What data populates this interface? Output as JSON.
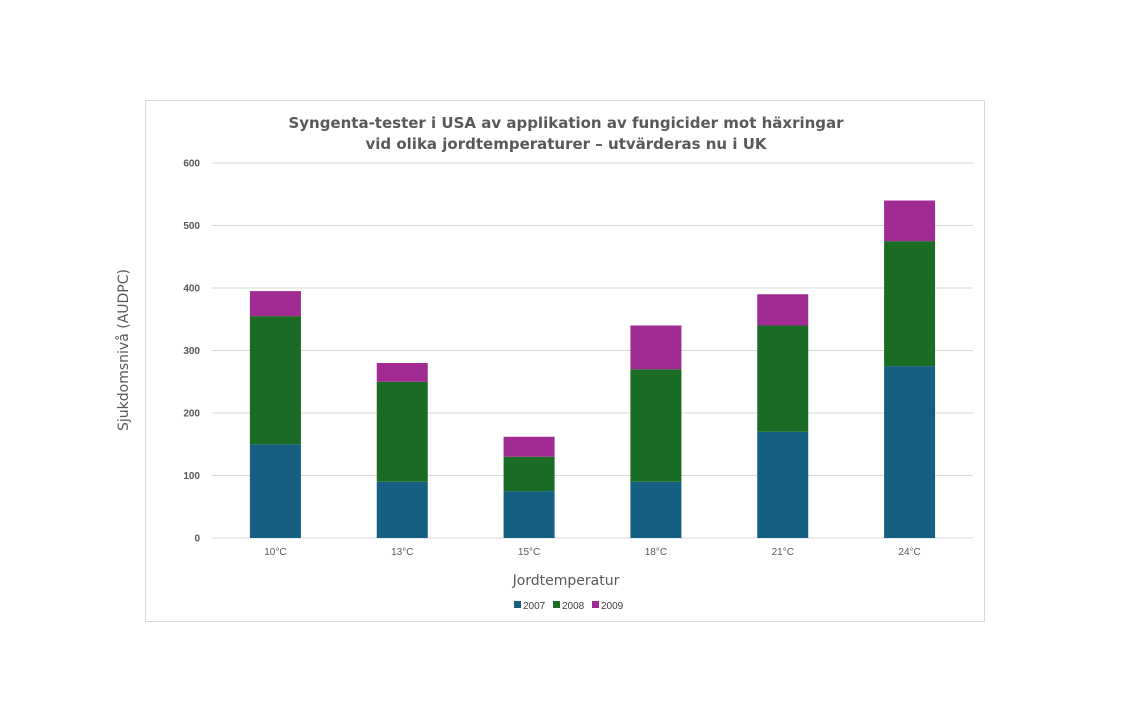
{
  "chart_data": {
    "type": "bar",
    "stacked": true,
    "title_lines": [
      "Syngenta-tester i USA av applikation av fungicider mot häxringar",
      "vid olika jordtemperaturer – utvärderas nu i UK"
    ],
    "xlabel": "Jordtemperatur",
    "ylabel": "Sjukdomsnivå (AUDPC)",
    "categories": [
      "10°C",
      "13°C",
      "15°C",
      "18°C",
      "21°C",
      "24°C"
    ],
    "ylim": [
      0,
      600
    ],
    "yticks": [
      0,
      100,
      200,
      300,
      400,
      500,
      600
    ],
    "grid": true,
    "legend_position": "bottom",
    "series": [
      {
        "name": "2007",
        "color": "#155f82",
        "values": [
          150,
          90,
          75,
          90,
          170,
          275
        ]
      },
      {
        "name": "2008",
        "color": "#1a6b24",
        "values": [
          205,
          160,
          55,
          180,
          170,
          200
        ]
      },
      {
        "name": "2009",
        "color": "#a02b93",
        "values": [
          40,
          30,
          32,
          70,
          50,
          65
        ]
      }
    ]
  }
}
